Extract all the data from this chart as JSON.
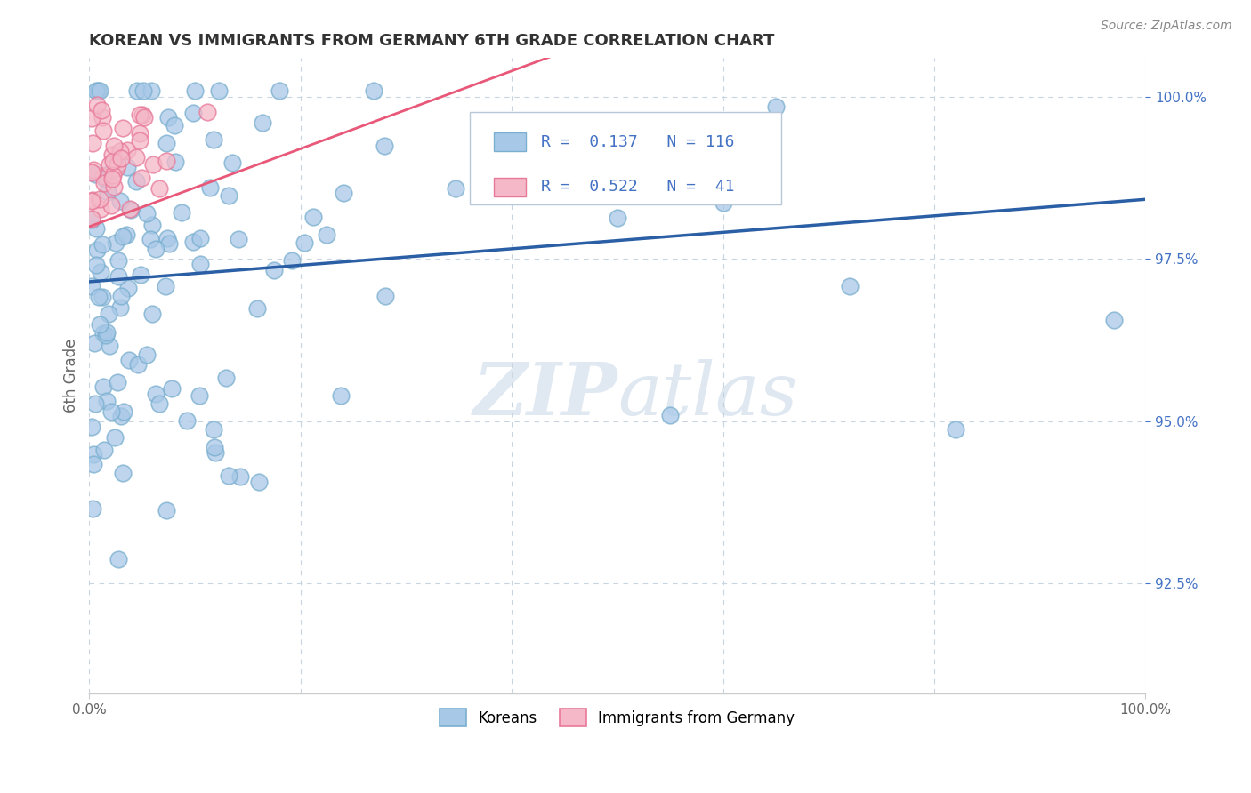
{
  "title": "KOREAN VS IMMIGRANTS FROM GERMANY 6TH GRADE CORRELATION CHART",
  "source_text": "Source: ZipAtlas.com",
  "ylabel": "6th Grade",
  "y_ticks": [
    0.925,
    0.95,
    0.975,
    1.0
  ],
  "y_tick_labels": [
    "92.5%",
    "95.0%",
    "97.5%",
    "100.0%"
  ],
  "xlim": [
    0.0,
    1.0
  ],
  "ylim": [
    0.908,
    1.006
  ],
  "blue_color": "#a8c8e8",
  "blue_edge_color": "#7aafcf",
  "pink_color": "#f4b8c8",
  "pink_edge_color": "#e87898",
  "blue_line_color": "#2b5fa5",
  "pink_line_color": "#e85878",
  "legend_blue_label": "Koreans",
  "legend_pink_label": "Immigrants from Germany",
  "R_blue": 0.137,
  "N_blue": 116,
  "R_pink": 0.522,
  "N_pink": 41,
  "background_color": "#ffffff",
  "grid_color": "#c8d4e0",
  "watermark_text": "ZIPatlas",
  "watermark_color": "#c8d4e8",
  "title_color": "#333333",
  "ylabel_color": "#666666",
  "ytick_color": "#4472c4",
  "source_color": "#888888"
}
